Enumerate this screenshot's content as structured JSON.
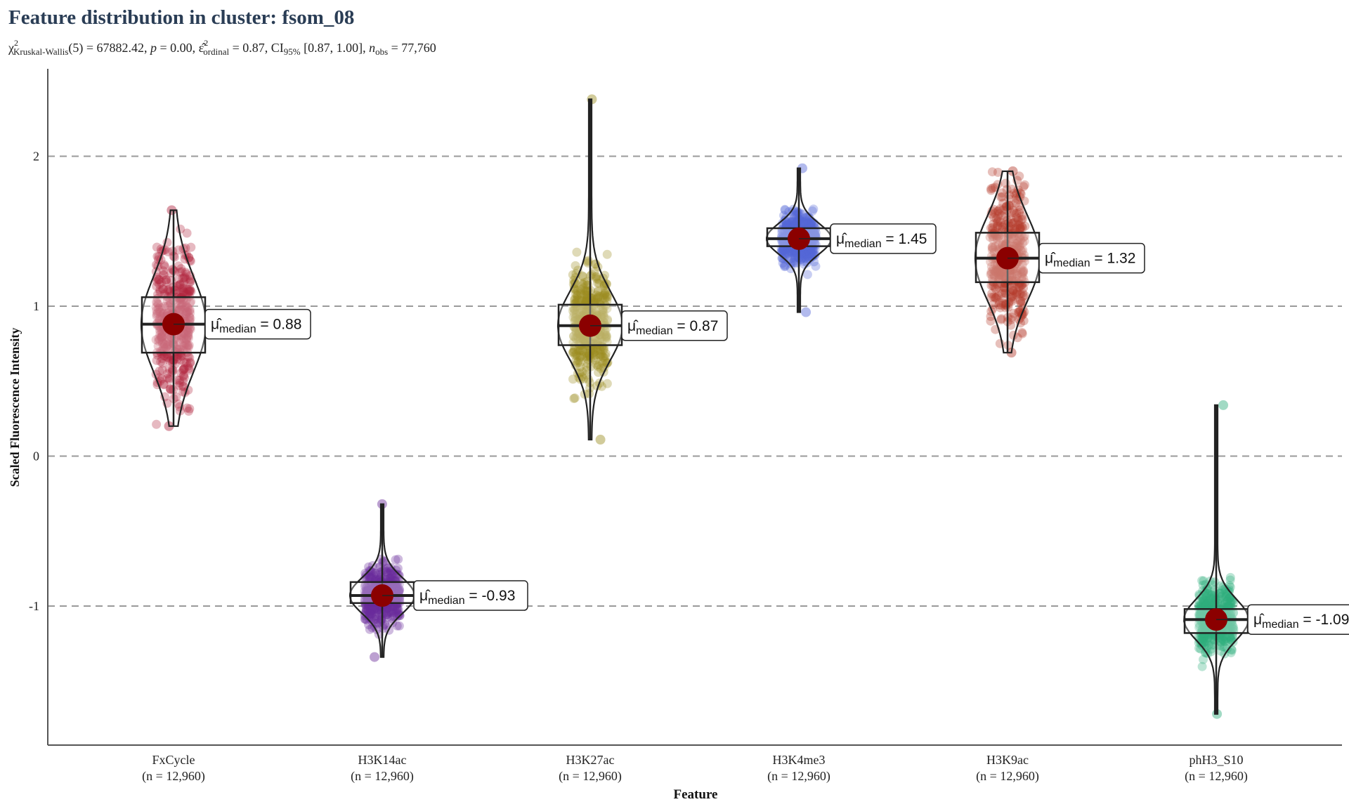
{
  "chart_data": {
    "type": "violin-box-scatter",
    "title": "Feature distribution in cluster: fsom_08",
    "subtitle": {
      "chi_symbol": "χ",
      "sup": "2",
      "test_sub": "Kruskal-Wallis",
      "df_part": "(5) = 67882.42, ",
      "p_symbol": "p",
      "p_part": " = 0.00, ",
      "eps_symbol": "ε̂",
      "eps_sub": "ordinal",
      "eps_part": " = 0.87, CI",
      "ci_sub": "95%",
      "ci_part": " [0.87, 1.00], ",
      "n_symbol": "n",
      "n_sub": "obs",
      "n_part": " = 77,760"
    },
    "xlabel": "Feature",
    "ylabel": "Scaled Fluorescence Intensity",
    "ylim": [
      -1.9,
      2.5
    ],
    "yticks": [
      -1,
      0,
      1,
      2
    ],
    "ytick_labels": [
      "-1",
      "0",
      "1",
      "2"
    ],
    "grid": "horizontal dashed at major ticks",
    "label_prefix": "μ̂",
    "label_sub": "median",
    "groups": [
      {
        "name": "FxCycle",
        "n_label": "(n = 12,960)",
        "color": "#B0243F",
        "median": 0.88,
        "median_label": " = 0.88",
        "q1": 0.69,
        "q3": 1.06,
        "min": 0.2,
        "max": 1.64
      },
      {
        "name": "H3K14ac",
        "n_label": "(n = 12,960)",
        "color": "#6B2D9A",
        "median": -0.93,
        "median_label": " = -0.93",
        "q1": -0.98,
        "q3": -0.84,
        "min": -1.34,
        "max": -0.32
      },
      {
        "name": "H3K27ac",
        "n_label": "(n = 12,960)",
        "color": "#9A8C1E",
        "median": 0.87,
        "median_label": " = 0.87",
        "q1": 0.74,
        "q3": 1.01,
        "min": 0.11,
        "max": 2.38
      },
      {
        "name": "H3K4me3",
        "n_label": "(n = 12,960)",
        "color": "#5466D6",
        "median": 1.45,
        "median_label": " = 1.45",
        "q1": 1.4,
        "q3": 1.52,
        "min": 0.96,
        "max": 1.92
      },
      {
        "name": "H3K9ac",
        "n_label": "(n = 12,960)",
        "color": "#B33A2C",
        "median": 1.32,
        "median_label": " = 1.32",
        "q1": 1.16,
        "q3": 1.49,
        "min": 0.69,
        "max": 1.9
      },
      {
        "name": "phH3_S10",
        "n_label": "(n = 12,960)",
        "color": "#2FAE7C",
        "median": -1.09,
        "median_label": " = -1.09",
        "q1": -1.18,
        "q3": -1.02,
        "min": -1.72,
        "max": 0.34
      }
    ]
  }
}
